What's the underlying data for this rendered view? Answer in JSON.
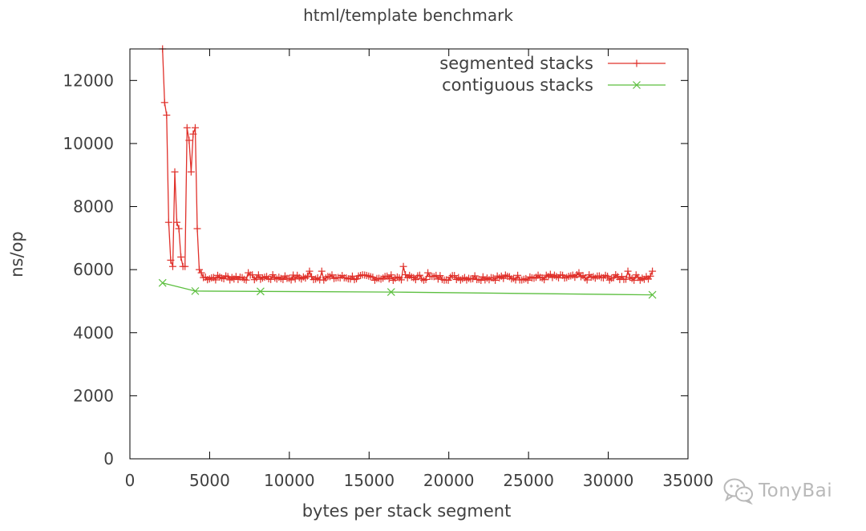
{
  "chart_data": {
    "type": "line",
    "title": "html/template benchmark",
    "xlabel": "bytes per stack segment",
    "ylabel": "ns/op",
    "xlim": [
      0,
      35000
    ],
    "ylim": [
      0,
      13000
    ],
    "xticks": [
      0,
      5000,
      10000,
      15000,
      20000,
      25000,
      30000,
      35000
    ],
    "yticks": [
      0,
      2000,
      4000,
      6000,
      8000,
      10000,
      12000
    ],
    "xtick_labels": [
      "0",
      "5000",
      "10000",
      "15000",
      "20000",
      "25000",
      "30000",
      "35000"
    ],
    "ytick_labels": [
      "0",
      "2000",
      "4000",
      "6000",
      "8000",
      "10000",
      "12000"
    ],
    "grid": false,
    "legend_position": "top-right",
    "series": [
      {
        "name": "segmented stacks",
        "color": "#e0302a",
        "marker": "plus",
        "x": [
          2048,
          2176,
          2304,
          2432,
          2560,
          2688,
          2816,
          2944,
          3072,
          3200,
          3328,
          3456,
          3584,
          3712,
          3840,
          3968,
          4096,
          4224,
          4352,
          4480
        ],
        "y": [
          13000,
          11300,
          10900,
          7500,
          6300,
          6100,
          9100,
          7500,
          7300,
          6400,
          6100,
          6100,
          10500,
          10100,
          9100,
          10300,
          10500,
          7300,
          6000,
          5900
        ],
        "tail": {
          "x_start": 4608,
          "x_end": 32768,
          "step": 128,
          "base": 5750,
          "amplitude": 90
        },
        "spikes": [
          {
            "x": 7424,
            "y": 5900
          },
          {
            "x": 11264,
            "y": 5950
          },
          {
            "x": 12032,
            "y": 5950
          },
          {
            "x": 17152,
            "y": 6100
          },
          {
            "x": 18688,
            "y": 5900
          },
          {
            "x": 26368,
            "y": 5850
          },
          {
            "x": 28160,
            "y": 5900
          },
          {
            "x": 31232,
            "y": 5950
          },
          {
            "x": 32768,
            "y": 5950
          }
        ]
      },
      {
        "name": "contiguous stacks",
        "color": "#5cbf3f",
        "marker": "x",
        "x": [
          2048,
          4096,
          8192,
          16384,
          32768
        ],
        "y": [
          5580,
          5320,
          5310,
          5290,
          5200
        ]
      }
    ]
  },
  "watermark": {
    "icon": "wechat-icon",
    "text": "TonyBai",
    "color": "#b9b9b9"
  }
}
